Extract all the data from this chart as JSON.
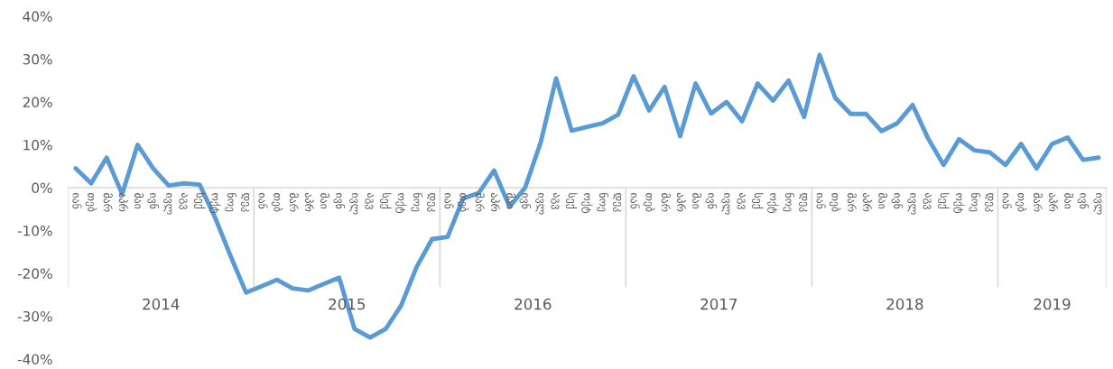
{
  "chart_data": {
    "type": "line",
    "categories": [
      "იან",
      "თებ",
      "მარ",
      "აპრ",
      "მაი",
      "ივნ",
      "ივლ",
      "აგვ",
      "სექ",
      "ოქტ",
      "ნოე",
      "დეკ",
      "იან",
      "თებ",
      "მარ",
      "აპრ",
      "მაი",
      "ივნ",
      "ივლ",
      "აგვ",
      "სექ",
      "ოქტ",
      "ნოე",
      "დეკ",
      "იან",
      "თებ",
      "მარ",
      "აპრ",
      "მაი",
      "ივნ",
      "ივლ",
      "აგვ",
      "სექ",
      "ოქტ",
      "ნოე",
      "დეკ",
      "იან",
      "თებ",
      "მარ",
      "აპრ",
      "მაი",
      "ივნ",
      "ივლ",
      "აგვ",
      "სექ",
      "ოქტ",
      "ნოე",
      "დეკ",
      "იან",
      "თებ",
      "მარ",
      "აპრ",
      "მაი",
      "ივნ",
      "ივლ",
      "აგვ",
      "სექ",
      "ოქტ",
      "ნოე",
      "დეკ",
      "იან",
      "თებ",
      "მარ",
      "აპრ",
      "მაი",
      "ივნ",
      "ივლ"
    ],
    "series": [
      {
        "color": "#5b9bd5",
        "values": [
          4.5,
          1,
          7,
          -1.5,
          10,
          4.5,
          0.5,
          1,
          0.7,
          -7,
          -16,
          -24.5,
          -23,
          -21.5,
          -23.5,
          -24,
          -22.5,
          -21,
          -33,
          -35,
          -33,
          -27.5,
          -18.5,
          -12,
          -11.5,
          -2.5,
          -1.3,
          4,
          -4.5,
          0,
          10.5,
          25.5,
          13.3,
          14.2,
          15,
          17,
          26,
          18,
          23.5,
          12,
          24.3,
          17.3,
          20,
          15.5,
          24.3,
          20.3,
          25,
          16.5,
          31,
          21,
          17.2,
          17.2,
          13.2,
          15,
          19.3,
          11.5,
          5.3,
          11.3,
          8.7,
          8.2,
          5.3,
          10.2,
          4.5,
          10.2,
          11.7,
          6.5,
          7
        ]
      }
    ],
    "ylim": [
      -40,
      40
    ],
    "yticks": [
      {
        "value": -40,
        "label": "-40%"
      },
      {
        "value": -30,
        "label": "-30%"
      },
      {
        "value": -20,
        "label": "-20%"
      },
      {
        "value": -10,
        "label": "-10%"
      },
      {
        "value": 0,
        "label": "0%"
      },
      {
        "value": 10,
        "label": "10%"
      },
      {
        "value": 20,
        "label": "20%"
      },
      {
        "value": 30,
        "label": "30%"
      },
      {
        "value": 40,
        "label": "40%"
      }
    ],
    "annotations": [
      "2014",
      "2015",
      "2016",
      "2017",
      "2018",
      "2019"
    ],
    "grid": false,
    "legend": false,
    "marker": "none",
    "line_style": "solid"
  }
}
